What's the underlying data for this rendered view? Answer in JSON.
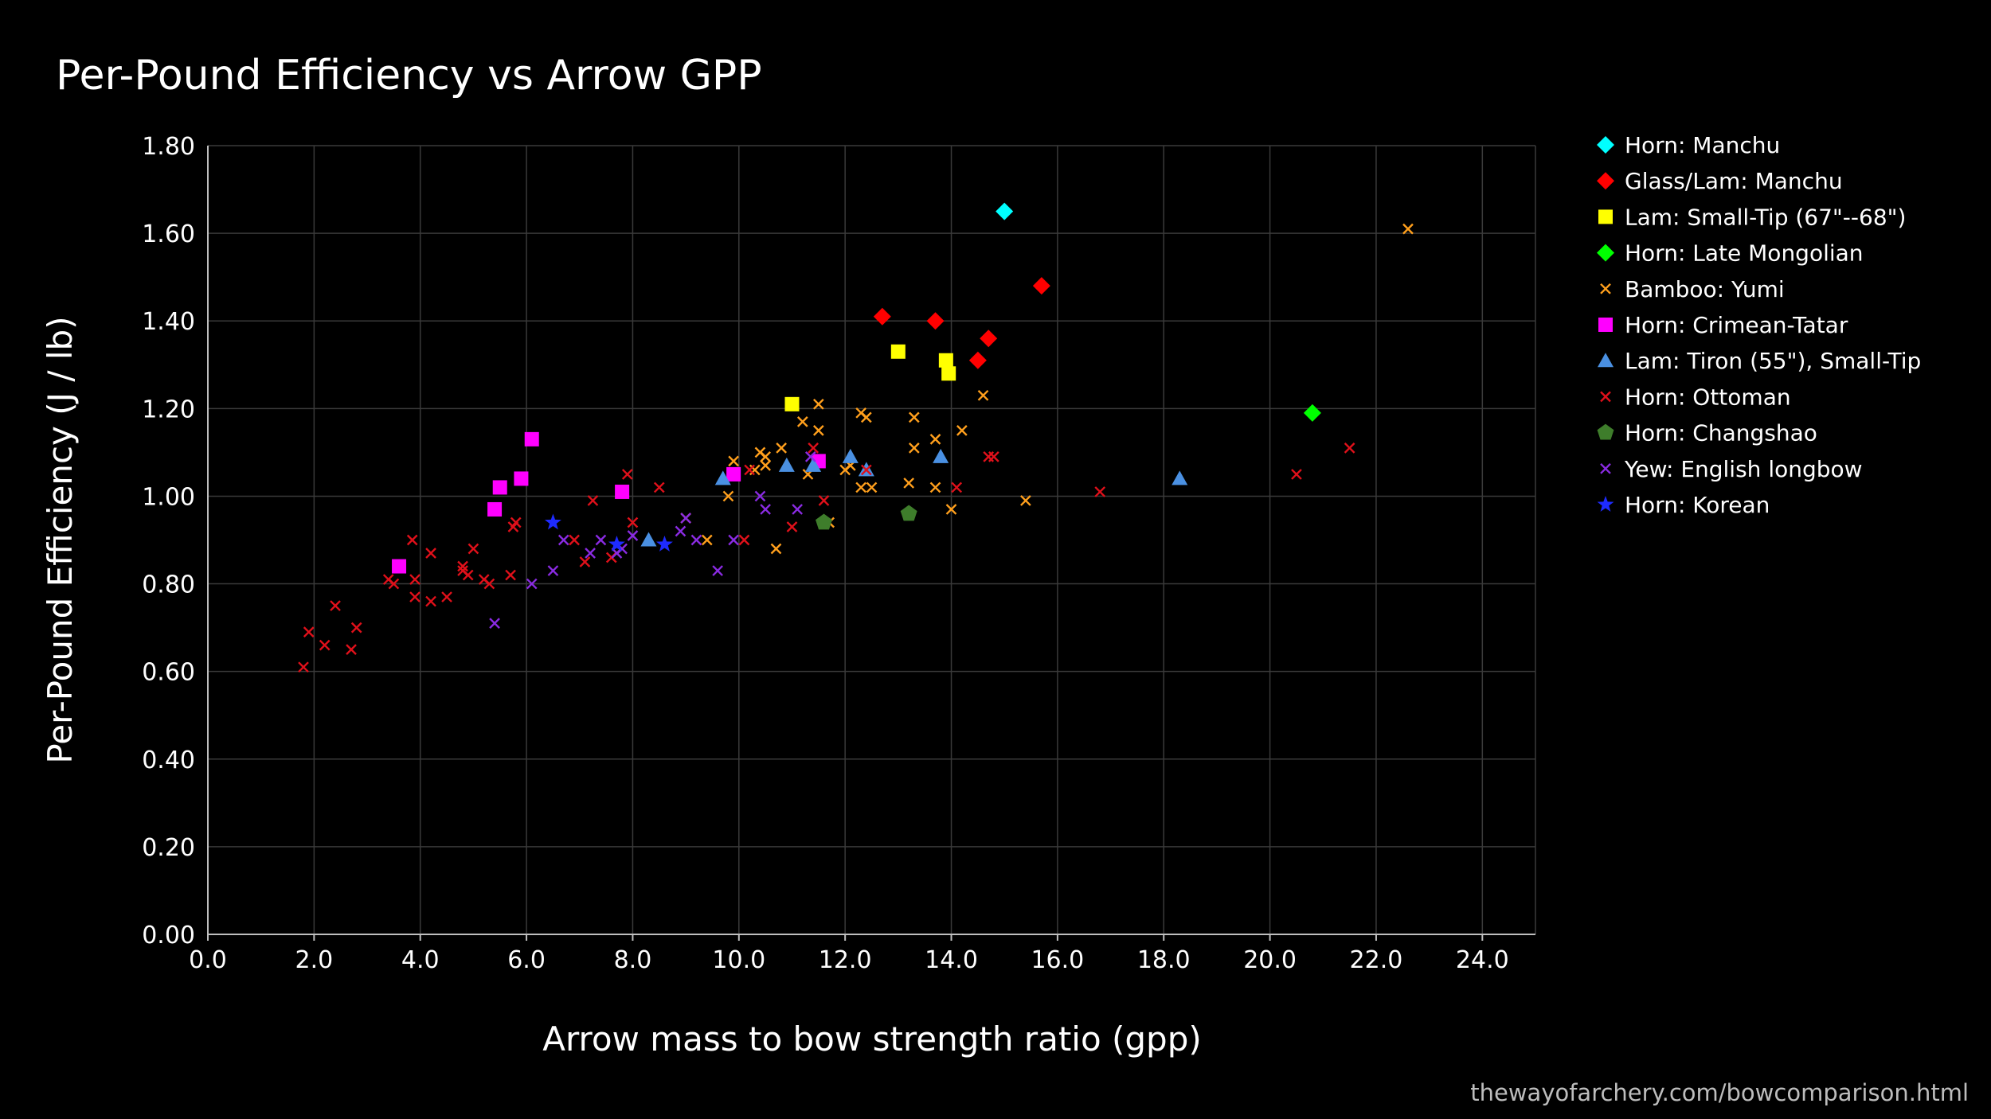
{
  "chart_data": {
    "type": "scatter",
    "title": "Per-Pound Efficiency vs Arrow GPP",
    "xlabel": "Arrow mass to bow strength ratio (gpp)",
    "ylabel": "Per-Pound Efficiency (J / lb)",
    "xlim": [
      0,
      25
    ],
    "ylim": [
      0,
      1.8
    ],
    "xticks": [
      "0.0",
      "2.0",
      "4.0",
      "6.0",
      "8.0",
      "10.0",
      "12.0",
      "14.0",
      "16.0",
      "18.0",
      "20.0",
      "22.0",
      "24.0"
    ],
    "yticks": [
      "0.00",
      "0.20",
      "0.40",
      "0.60",
      "0.80",
      "1.00",
      "1.20",
      "1.40",
      "1.60",
      "1.80"
    ],
    "grid": true,
    "legend_position": "right",
    "series": [
      {
        "name": "Horn: Manchu",
        "marker": "diamond",
        "color": "#00FFFF",
        "points": [
          [
            15.0,
            1.65
          ]
        ]
      },
      {
        "name": "Glass/Lam: Manchu",
        "marker": "diamond",
        "color": "#FF0000",
        "points": [
          [
            12.7,
            1.41
          ],
          [
            13.7,
            1.4
          ],
          [
            14.7,
            1.36
          ],
          [
            14.5,
            1.31
          ],
          [
            15.7,
            1.48
          ]
        ]
      },
      {
        "name": "Lam: Small-Tip (67\"--68\")",
        "marker": "square",
        "color": "#FFFF00",
        "points": [
          [
            11.0,
            1.21
          ],
          [
            13.0,
            1.33
          ],
          [
            13.9,
            1.31
          ],
          [
            13.95,
            1.28
          ]
        ]
      },
      {
        "name": "Horn: Late Mongolian",
        "marker": "diamond",
        "color": "#00FF00",
        "points": [
          [
            20.8,
            1.19
          ]
        ]
      },
      {
        "name": "Bamboo: Yumi",
        "marker": "x",
        "color": "#FF9F1C",
        "points": [
          [
            22.6,
            1.61
          ],
          [
            14.6,
            1.23
          ],
          [
            11.5,
            1.21
          ],
          [
            12.3,
            1.19
          ],
          [
            12.4,
            1.18
          ],
          [
            11.2,
            1.17
          ],
          [
            13.3,
            1.18
          ],
          [
            11.5,
            1.15
          ],
          [
            14.2,
            1.15
          ],
          [
            13.7,
            1.13
          ],
          [
            10.8,
            1.11
          ],
          [
            13.3,
            1.11
          ],
          [
            10.4,
            1.1
          ],
          [
            10.5,
            1.09
          ],
          [
            9.9,
            1.08
          ],
          [
            10.5,
            1.07
          ],
          [
            12.0,
            1.06
          ],
          [
            12.1,
            1.07
          ],
          [
            10.3,
            1.06
          ],
          [
            11.3,
            1.05
          ],
          [
            13.2,
            1.03
          ],
          [
            13.7,
            1.02
          ],
          [
            12.3,
            1.02
          ],
          [
            12.5,
            1.02
          ],
          [
            9.8,
            1.0
          ],
          [
            15.4,
            0.99
          ],
          [
            14.0,
            0.97
          ],
          [
            9.0,
            0.95
          ],
          [
            11.7,
            0.94
          ],
          [
            9.4,
            0.9
          ],
          [
            10.7,
            0.88
          ]
        ]
      },
      {
        "name": "Horn: Crimean-Tatar",
        "marker": "square",
        "color": "#FF00FF",
        "points": [
          [
            6.1,
            1.13
          ],
          [
            5.5,
            1.02
          ],
          [
            5.9,
            1.04
          ],
          [
            5.4,
            0.97
          ],
          [
            7.8,
            1.01
          ],
          [
            9.9,
            1.05
          ],
          [
            11.5,
            1.08
          ],
          [
            3.6,
            0.84
          ]
        ]
      },
      {
        "name": "Lam: Tiron (55\"), Small-Tip",
        "marker": "triangle",
        "color": "#4A90E2",
        "points": [
          [
            9.7,
            1.04
          ],
          [
            10.9,
            1.07
          ],
          [
            11.4,
            1.07
          ],
          [
            12.1,
            1.09
          ],
          [
            12.4,
            1.06
          ],
          [
            13.8,
            1.09
          ],
          [
            18.3,
            1.04
          ],
          [
            8.3,
            0.9
          ]
        ]
      },
      {
        "name": "Horn: Ottoman",
        "marker": "x",
        "color": "#E0101A",
        "points": [
          [
            1.8,
            0.61
          ],
          [
            1.9,
            0.69
          ],
          [
            2.2,
            0.66
          ],
          [
            2.4,
            0.75
          ],
          [
            2.7,
            0.65
          ],
          [
            2.8,
            0.7
          ],
          [
            3.4,
            0.81
          ],
          [
            3.5,
            0.8
          ],
          [
            3.9,
            0.81
          ],
          [
            3.9,
            0.77
          ],
          [
            3.85,
            0.9
          ],
          [
            4.2,
            0.87
          ],
          [
            4.2,
            0.76
          ],
          [
            4.5,
            0.77
          ],
          [
            4.8,
            0.83
          ],
          [
            4.8,
            0.84
          ],
          [
            4.9,
            0.82
          ],
          [
            5.0,
            0.88
          ],
          [
            5.2,
            0.81
          ],
          [
            5.3,
            0.8
          ],
          [
            5.7,
            0.82
          ],
          [
            5.75,
            0.93
          ],
          [
            5.8,
            0.94
          ],
          [
            6.9,
            0.9
          ],
          [
            7.1,
            0.85
          ],
          [
            7.25,
            0.99
          ],
          [
            7.6,
            0.86
          ],
          [
            7.9,
            1.05
          ],
          [
            8.0,
            0.94
          ],
          [
            8.5,
            1.02
          ],
          [
            10.1,
            0.9
          ],
          [
            10.2,
            1.06
          ],
          [
            11.0,
            0.93
          ],
          [
            11.4,
            1.11
          ],
          [
            11.6,
            0.99
          ],
          [
            12.4,
            1.06
          ],
          [
            14.1,
            1.02
          ],
          [
            14.7,
            1.09
          ],
          [
            14.8,
            1.09
          ],
          [
            16.8,
            1.01
          ],
          [
            20.5,
            1.05
          ],
          [
            21.5,
            1.11
          ]
        ]
      },
      {
        "name": "Horn: Changshao",
        "marker": "pentagon",
        "color": "#3E7D2B",
        "points": [
          [
            11.6,
            0.94
          ],
          [
            13.2,
            0.96
          ]
        ]
      },
      {
        "name": "Yew: English longbow",
        "marker": "x",
        "color": "#8A2BE2",
        "points": [
          [
            5.4,
            0.71
          ],
          [
            6.1,
            0.8
          ],
          [
            6.5,
            0.83
          ],
          [
            6.7,
            0.9
          ],
          [
            7.2,
            0.87
          ],
          [
            7.4,
            0.9
          ],
          [
            7.7,
            0.87
          ],
          [
            7.8,
            0.88
          ],
          [
            8.0,
            0.91
          ],
          [
            8.9,
            0.92
          ],
          [
            9.0,
            0.95
          ],
          [
            9.2,
            0.9
          ],
          [
            9.6,
            0.83
          ],
          [
            9.9,
            0.9
          ],
          [
            10.4,
            1.0
          ],
          [
            10.5,
            0.97
          ],
          [
            11.1,
            0.97
          ],
          [
            11.35,
            1.09
          ]
        ]
      },
      {
        "name": "Horn: Korean",
        "marker": "star",
        "color": "#1E2BFF",
        "points": [
          [
            6.5,
            0.94
          ],
          [
            7.7,
            0.89
          ],
          [
            8.6,
            0.89
          ]
        ]
      }
    ]
  },
  "credit": "thewayofarchery.com/bowcomparison.html"
}
